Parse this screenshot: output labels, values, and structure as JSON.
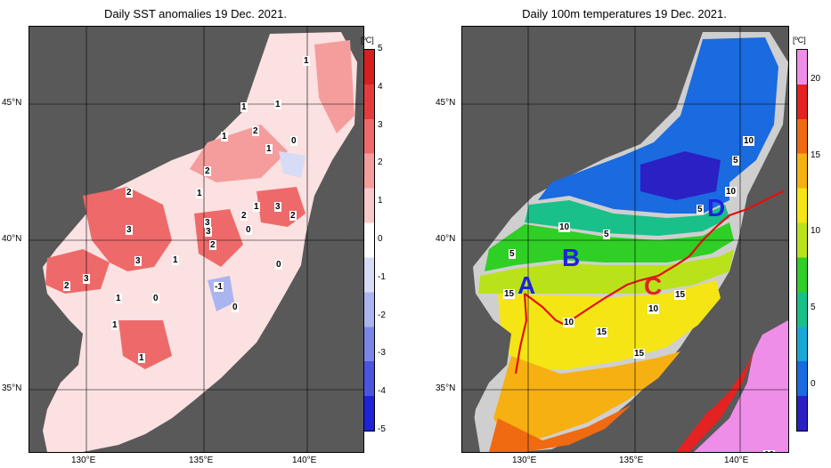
{
  "left_panel": {
    "title": "Daily SST anomalies 19 Dec. 2021.",
    "unit": "[ºC]",
    "colorbar_ticks": [
      "5",
      "4",
      "3",
      "2",
      "1",
      "0",
      "-1",
      "-2",
      "-3",
      "-4",
      "-5"
    ],
    "colorbar_colors": [
      "#d81f1f",
      "#e43c3c",
      "#ee6a6a",
      "#f59d9d",
      "#f9c9c9",
      "#ffffff",
      "#d6dcf5",
      "#aab4ee",
      "#7a86e6",
      "#4a55de",
      "#1e22d8"
    ],
    "contour_labels": [
      "1",
      "1",
      "1",
      "1",
      "2",
      "0",
      "1",
      "2",
      "2",
      "1",
      "3",
      "3",
      "2",
      "2",
      "3",
      "1",
      "3",
      "2",
      "3",
      "0",
      "3",
      "2",
      "1",
      "1",
      "0",
      "-1",
      "0",
      "1",
      "0",
      "1"
    ]
  },
  "right_panel": {
    "title": "Daily 100m temperatures 19 Dec. 2021.",
    "unit": "[ºC]",
    "colorbar_ticks": [
      "20",
      "15",
      "10",
      "5",
      "0"
    ],
    "colorbar_colors": [
      "#ef8ee9",
      "#e42222",
      "#f06a12",
      "#f7b012",
      "#f5e515",
      "#b9e21b",
      "#2fcf25",
      "#19c08a",
      "#1aa7d8",
      "#1a6ae0",
      "#2a20c4"
    ],
    "contour_labels": [
      "10",
      "5",
      "10",
      "5",
      "10",
      "5",
      "5",
      "15",
      "10",
      "10",
      "15",
      "15",
      "15",
      "10"
    ],
    "regions": [
      "A",
      "B",
      "C",
      "D"
    ],
    "region_colors": {
      "A": "#1e22e0",
      "B": "#1e22e0",
      "C": "#e42222",
      "D": "#1e22e0"
    }
  },
  "axes": {
    "lat_labels": [
      "45°N",
      "40°N",
      "35°N"
    ],
    "lon_labels": [
      "130°E",
      "135°E",
      "140°E"
    ]
  }
}
